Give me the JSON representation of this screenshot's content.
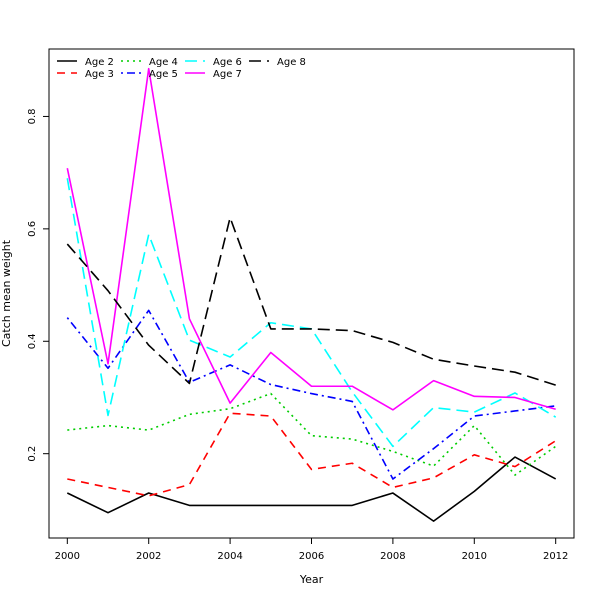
{
  "chart_data": {
    "type": "line",
    "title": "",
    "xlabel": "Year",
    "ylabel": "Catch mean weight",
    "xlim": [
      1999.55,
      2012.45
    ],
    "ylim": [
      0.05,
      0.92
    ],
    "xticks": [
      2000,
      2002,
      2004,
      2006,
      2008,
      2010,
      2012
    ],
    "xtick_labels": [
      "2000",
      "2002",
      "2004",
      "2006",
      "2008",
      "2010",
      "2012"
    ],
    "yticks": [
      0.2,
      0.4,
      0.6,
      0.8
    ],
    "ytick_labels": [
      "0.2",
      "0.4",
      "0.6",
      "0.8"
    ],
    "grid": false,
    "legend_position": "top-left",
    "x": [
      2000,
      2001,
      2002,
      2003,
      2004,
      2005,
      2006,
      2007,
      2008,
      2009,
      2010,
      2011,
      2012
    ],
    "series": [
      {
        "name": "Age 2",
        "color": "#000000",
        "dash": "solid",
        "values": [
          0.13,
          0.095,
          0.13,
          0.108,
          0.108,
          0.108,
          0.108,
          0.108,
          0.13,
          0.08,
          0.133,
          0.194,
          0.155
        ]
      },
      {
        "name": "Age 3",
        "color": "#ff0000",
        "dash": "dashed",
        "values": [
          0.155,
          0.14,
          0.125,
          0.145,
          0.272,
          0.267,
          0.172,
          0.183,
          0.14,
          0.157,
          0.198,
          0.177,
          0.223
        ]
      },
      {
        "name": "Age 4",
        "color": "#00cd00",
        "dash": "dotted",
        "values": [
          0.242,
          0.25,
          0.242,
          0.27,
          0.28,
          0.307,
          0.232,
          0.226,
          0.204,
          0.178,
          0.25,
          0.162,
          0.213
        ]
      },
      {
        "name": "Age 5",
        "color": "#0000ff",
        "dash": "dotdash",
        "values": [
          0.442,
          0.352,
          0.455,
          0.327,
          0.358,
          0.323,
          0.307,
          0.293,
          0.155,
          0.209,
          0.267,
          0.276,
          0.285
        ]
      },
      {
        "name": "Age 6",
        "color": "#00ffff",
        "dash": "longdash",
        "values": [
          0.69,
          0.268,
          0.59,
          0.402,
          0.372,
          0.433,
          0.422,
          0.31,
          0.213,
          0.282,
          0.274,
          0.308,
          0.265
        ]
      },
      {
        "name": "Age 7",
        "color": "#ff00ff",
        "dash": "solid",
        "values": [
          0.708,
          0.36,
          0.885,
          0.44,
          0.29,
          0.38,
          0.32,
          0.32,
          0.278,
          0.33,
          0.302,
          0.3,
          0.279
        ]
      },
      {
        "name": "Age 8",
        "color": "#000000",
        "dash": "longdash",
        "values": [
          0.573,
          0.49,
          0.393,
          0.325,
          0.62,
          0.422,
          0.422,
          0.419,
          0.398,
          0.368,
          0.356,
          0.345,
          0.322
        ]
      }
    ]
  }
}
